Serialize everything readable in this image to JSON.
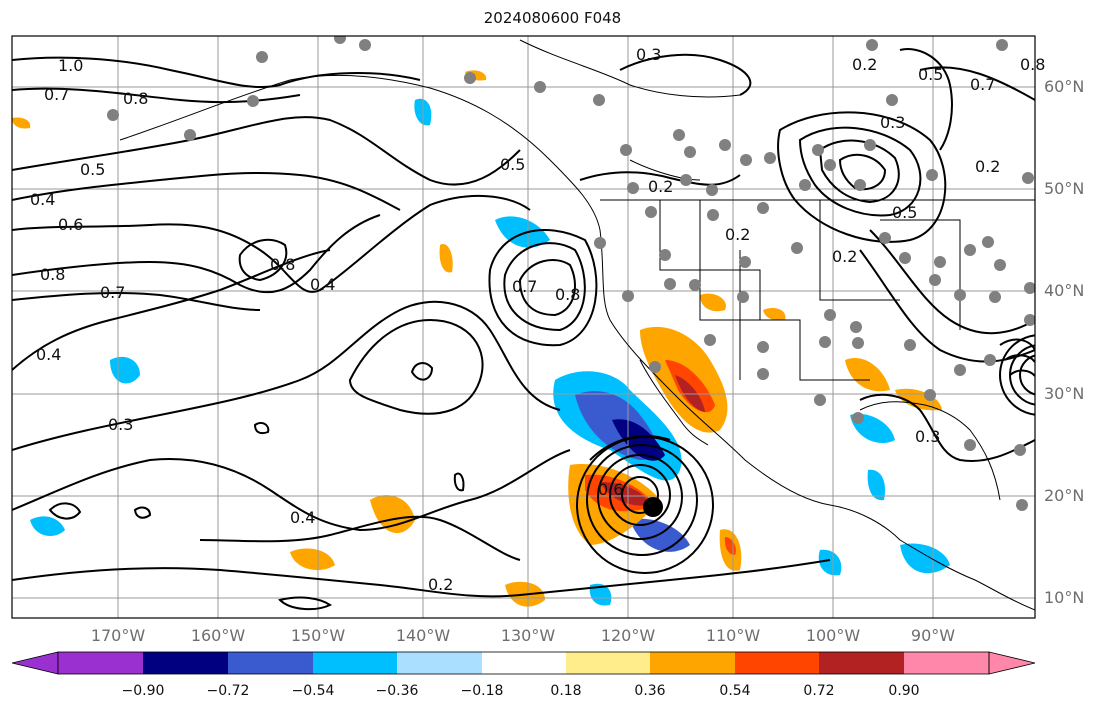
{
  "title": "2024080600 F048",
  "lon_labels": [
    "170°W",
    "160°W",
    "150°W",
    "140°W",
    "130°W",
    "120°W",
    "110°W",
    "100°W",
    "90°W"
  ],
  "lat_labels": [
    "60°N",
    "50°N",
    "40°N",
    "30°N",
    "20°N",
    "10°N"
  ],
  "colorbar": {
    "ticks": [
      "−0.90",
      "−0.72",
      "−0.54",
      "−0.36",
      "−0.18",
      "0.18",
      "0.36",
      "0.54",
      "0.72",
      "0.90"
    ],
    "colors": [
      "#9b30d0",
      "#000080",
      "#3a5bd0",
      "#00bfff",
      "#aadfff",
      "#ffffff",
      "#ffec8b",
      "#ffa500",
      "#ff4500",
      "#b22222",
      "#ff88aa"
    ]
  },
  "contour_labels": [
    "1.0",
    "0.7",
    "0.8",
    "0.5",
    "0.4",
    "0.6",
    "0.8",
    "0.7",
    "0.4",
    "0.3",
    "0.4",
    "0.2",
    "0.8",
    "0.4",
    "0.7",
    "0.8",
    "0.5",
    "0.3",
    "0.2",
    "0.2",
    "0.2",
    "0.5",
    "0.3",
    "0.2",
    "0.5",
    "0.2",
    "0.3",
    "0.6",
    "0.8",
    "0.7"
  ],
  "colors": {
    "shading_warm": "#ffa500",
    "shading_cold": "#00bfff",
    "contour": "#000000",
    "grid": "#999999",
    "marker": "#808080"
  }
}
